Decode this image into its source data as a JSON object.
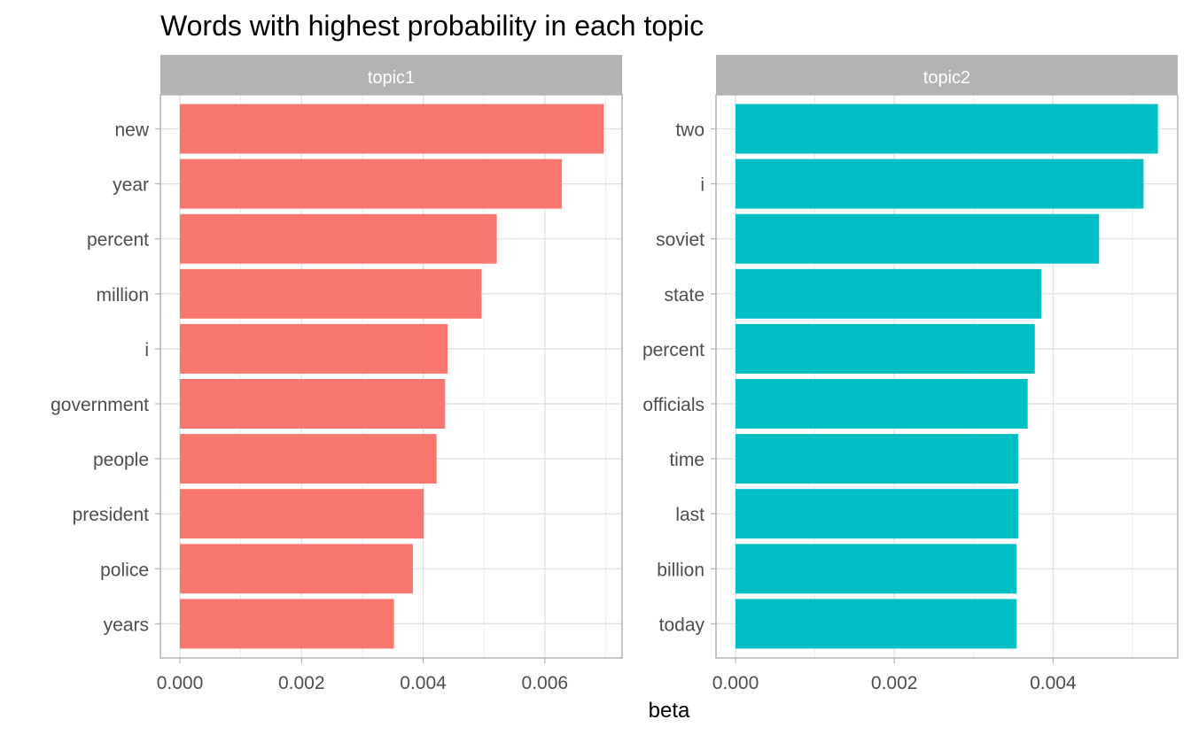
{
  "chart_data": {
    "type": "bar",
    "orientation": "horizontal",
    "title": "Words with highest probability in each topic",
    "xlabel": "beta",
    "ylabel": "",
    "grid": true,
    "legend": "none",
    "panels": [
      {
        "name": "topic1",
        "color": "#F8766D",
        "xlim": [
          0,
          0.00727
        ],
        "xticks": [
          0,
          0.002,
          0.004,
          0.006
        ],
        "xtick_labels": [
          "0.000",
          "0.002",
          "0.004",
          "0.006"
        ],
        "categories": [
          "new",
          "year",
          "percent",
          "million",
          "i",
          "government",
          "people",
          "president",
          "police",
          "years"
        ],
        "values": [
          0.00697,
          0.00628,
          0.00521,
          0.00496,
          0.0044,
          0.00436,
          0.00422,
          0.00401,
          0.00383,
          0.00352
        ]
      },
      {
        "name": "topic2",
        "color": "#00BFC4",
        "xlim": [
          0,
          0.00557
        ],
        "xticks": [
          0,
          0.002,
          0.004
        ],
        "xtick_labels": [
          "0.000",
          "0.002",
          "0.004"
        ],
        "categories": [
          "two",
          "i",
          "soviet",
          "state",
          "percent",
          "officials",
          "time",
          "last",
          "billion",
          "today"
        ],
        "values": [
          0.00532,
          0.00514,
          0.00458,
          0.00385,
          0.00377,
          0.00368,
          0.00356,
          0.00356,
          0.00354,
          0.00354
        ]
      }
    ]
  }
}
